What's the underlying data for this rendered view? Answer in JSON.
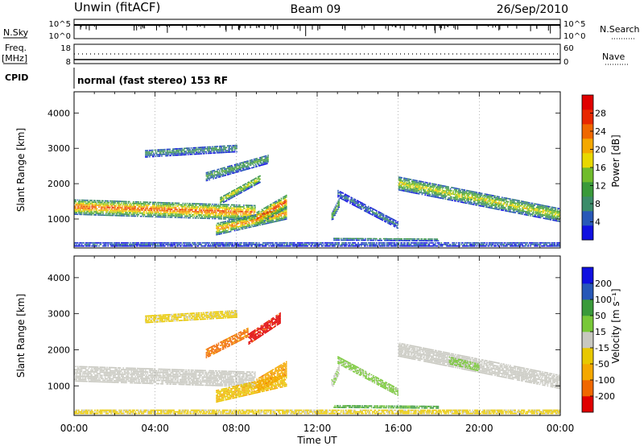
{
  "header": {
    "station": "Unwin (fitACF)",
    "beam": "Beam 09",
    "date": "26/Sep/2010"
  },
  "strip_panels": {
    "nsky_label": "N.Sky",
    "nsearch_label": "N.Search",
    "nsky_ticks": [
      "10^5",
      "10^0"
    ],
    "nsearch_ticks": [
      "10^5",
      "10^0"
    ],
    "freq_label_line1": "Freq.",
    "freq_label_line2": "[MHz]",
    "freq_ticks": [
      "18",
      "8"
    ],
    "nave_label": "Nave",
    "nave_ticks": [
      "60",
      "0"
    ],
    "cpid_label": "CPID",
    "cpid_text": "normal (fast stereo) 153 RF"
  },
  "chart_data": [
    {
      "type": "heatmap",
      "title": "",
      "xlabel": "",
      "ylabel": "Slant Range [km]",
      "xlim": [
        0,
        24
      ],
      "ylim": [
        180,
        4600
      ],
      "yticks": [
        "1000",
        "2000",
        "3000",
        "4000"
      ],
      "colorbar": {
        "label": "Power [dB]",
        "range": [
          0,
          32
        ],
        "ticks": [
          "4",
          "8",
          "12",
          "16",
          "20",
          "24",
          "28"
        ],
        "colors": [
          "#1010e0",
          "#2858b8",
          "#3c8c6a",
          "#3a9a3a",
          "#70bc2c",
          "#e8d800",
          "#f4a800",
          "#f06800",
          "#e82800",
          "#e00000"
        ]
      },
      "echo_regions": [
        {
          "t_start": 0.0,
          "t_end": 8.9,
          "r_start": 1330,
          "r_end": 1170,
          "width": 420,
          "peak_db": 26
        },
        {
          "t_start": 7.2,
          "t_end": 9.2,
          "r_start": 1520,
          "r_end": 2150,
          "width": 220,
          "peak_db": 18
        },
        {
          "t_start": 3.5,
          "t_end": 8.0,
          "r_start": 2850,
          "r_end": 3000,
          "width": 220,
          "peak_db": 10
        },
        {
          "t_start": 6.5,
          "t_end": 9.6,
          "r_start": 2200,
          "r_end": 2700,
          "width": 260,
          "peak_db": 12
        },
        {
          "t_start": 7.0,
          "t_end": 10.5,
          "r_start": 700,
          "r_end": 1150,
          "width": 320,
          "peak_db": 24
        },
        {
          "t_start": 9.0,
          "t_end": 10.5,
          "r_start": 1000,
          "r_end": 1500,
          "width": 380,
          "peak_db": 28
        },
        {
          "t_start": 12.7,
          "t_end": 13.1,
          "r_start": 1050,
          "r_end": 1500,
          "width": 250,
          "peak_db": 14
        },
        {
          "t_start": 13.0,
          "t_end": 16.0,
          "r_start": 1700,
          "r_end": 800,
          "width": 180,
          "peak_db": 8
        },
        {
          "t_start": 12.8,
          "t_end": 18.0,
          "r_start": 420,
          "r_end": 400,
          "width": 60,
          "peak_db": 14
        },
        {
          "t_start": 16.0,
          "t_end": 24.0,
          "r_start": 2000,
          "r_end": 1100,
          "width": 380,
          "peak_db": 18
        },
        {
          "t_start": 0.0,
          "t_end": 24.0,
          "r_start": 280,
          "r_end": 280,
          "width": 120,
          "peak_db": 6
        }
      ]
    },
    {
      "type": "heatmap",
      "title": "",
      "xlabel": "Time UT",
      "ylabel": "Slant Range [km]",
      "xlim": [
        0,
        24
      ],
      "ylim": [
        180,
        4600
      ],
      "xticks": [
        "00:00",
        "04:00",
        "08:00",
        "12:00",
        "16:00",
        "20:00",
        "00:00"
      ],
      "yticks": [
        "1000",
        "2000",
        "3000",
        "4000"
      ],
      "colorbar": {
        "label": "Velocity [m s⁻¹]",
        "range": [
          -250,
          250
        ],
        "ticks": [
          "200",
          "100",
          "50",
          "15",
          "-15",
          "-50",
          "-100",
          "-200"
        ],
        "colors": [
          "#e00000",
          "#f06800",
          "#f4a800",
          "#e8c800",
          "#c8c8c0",
          "#78c838",
          "#3a9a3a",
          "#2858b8",
          "#1010e0"
        ]
      },
      "echo_regions": [
        {
          "t_start": 0.0,
          "t_end": 8.9,
          "r_start": 1330,
          "r_end": 1170,
          "width": 420,
          "velocity": 0
        },
        {
          "t_start": 3.5,
          "t_end": 8.0,
          "r_start": 2850,
          "r_end": 3000,
          "width": 220,
          "velocity": -40
        },
        {
          "t_start": 6.5,
          "t_end": 8.6,
          "r_start": 1900,
          "r_end": 2500,
          "width": 260,
          "velocity": -150
        },
        {
          "t_start": 8.6,
          "t_end": 10.2,
          "r_start": 2300,
          "r_end": 2900,
          "width": 300,
          "velocity": -210
        },
        {
          "t_start": 7.0,
          "t_end": 10.5,
          "r_start": 700,
          "r_end": 1150,
          "width": 320,
          "velocity": -80
        },
        {
          "t_start": 9.0,
          "t_end": 10.5,
          "r_start": 1000,
          "r_end": 1500,
          "width": 380,
          "velocity": -120
        },
        {
          "t_start": 12.7,
          "t_end": 13.1,
          "r_start": 1050,
          "r_end": 1500,
          "width": 250,
          "velocity": 20
        },
        {
          "t_start": 13.0,
          "t_end": 16.0,
          "r_start": 1700,
          "r_end": 800,
          "width": 180,
          "velocity": 40
        },
        {
          "t_start": 12.8,
          "t_end": 18.0,
          "r_start": 420,
          "r_end": 400,
          "width": 60,
          "velocity": 90
        },
        {
          "t_start": 16.0,
          "t_end": 24.0,
          "r_start": 2000,
          "r_end": 1100,
          "width": 380,
          "velocity": 0
        },
        {
          "t_start": 18.5,
          "t_end": 20.0,
          "r_start": 1700,
          "r_end": 1500,
          "width": 200,
          "velocity": 40
        },
        {
          "t_start": 0.0,
          "t_end": 24.0,
          "r_start": 280,
          "r_end": 280,
          "width": 120,
          "velocity": -40
        }
      ]
    }
  ]
}
